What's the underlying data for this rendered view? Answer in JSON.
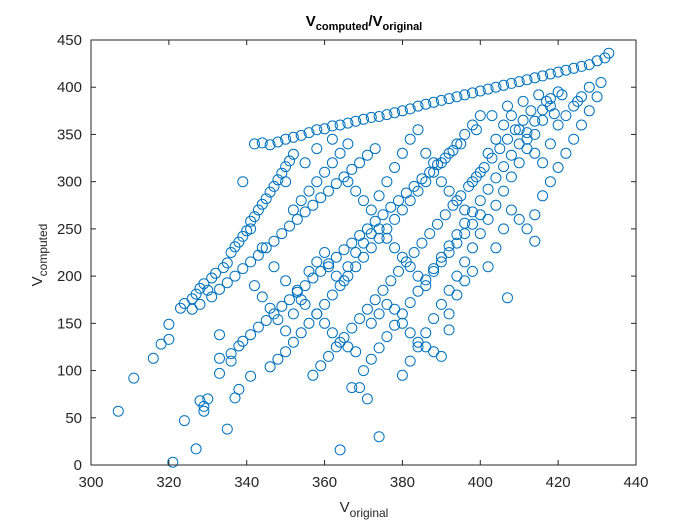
{
  "chart_data": {
    "type": "scatter",
    "title": {
      "main": "V",
      "sub1": "computed",
      "slash": "/V",
      "sub2": "original"
    },
    "xlabel": {
      "main": "V",
      "sub": "original"
    },
    "ylabel": {
      "main": "V",
      "sub": "computed"
    },
    "xlim": [
      300,
      440
    ],
    "ylim": [
      0,
      450
    ],
    "xticks": [
      "300",
      "320",
      "340",
      "360",
      "380",
      "400",
      "420",
      "440"
    ],
    "yticks": [
      "0",
      "50",
      "100",
      "150",
      "200",
      "250",
      "300",
      "350",
      "400",
      "450"
    ],
    "marker": "circle-open",
    "color": "#0072BD",
    "grid": false,
    "box": true,
    "points": [
      [
        307,
        57
      ],
      [
        311,
        92
      ],
      [
        316,
        113
      ],
      [
        318,
        128
      ],
      [
        320,
        133
      ],
      [
        320,
        149
      ],
      [
        321,
        3
      ],
      [
        324,
        47
      ],
      [
        327,
        17
      ],
      [
        328,
        68
      ],
      [
        329,
        57
      ],
      [
        329,
        62
      ],
      [
        330,
        70
      ],
      [
        333,
        97
      ],
      [
        333,
        113
      ],
      [
        333,
        138
      ],
      [
        335,
        38
      ],
      [
        336,
        110
      ],
      [
        337,
        71
      ],
      [
        338,
        80
      ],
      [
        339,
        300
      ],
      [
        341,
        94
      ],
      [
        341,
        250
      ],
      [
        342,
        340
      ],
      [
        344,
        341
      ],
      [
        346,
        339
      ],
      [
        348,
        342
      ],
      [
        350,
        345
      ],
      [
        352,
        347
      ],
      [
        354,
        349
      ],
      [
        356,
        352
      ],
      [
        358,
        355
      ],
      [
        360,
        356
      ],
      [
        362,
        359
      ],
      [
        364,
        16
      ],
      [
        364,
        360
      ],
      [
        366,
        362
      ],
      [
        367,
        82
      ],
      [
        368,
        364
      ],
      [
        369,
        82
      ],
      [
        370,
        366
      ],
      [
        371,
        70
      ],
      [
        372,
        368
      ],
      [
        374,
        30
      ],
      [
        374,
        369
      ],
      [
        376,
        371
      ],
      [
        378,
        373
      ],
      [
        380,
        375
      ],
      [
        382,
        377
      ],
      [
        384,
        380
      ],
      [
        386,
        382
      ],
      [
        388,
        384
      ],
      [
        390,
        386
      ],
      [
        392,
        143
      ],
      [
        392,
        388
      ],
      [
        394,
        390
      ],
      [
        396,
        392
      ],
      [
        398,
        394
      ],
      [
        400,
        396
      ],
      [
        402,
        398
      ],
      [
        404,
        400
      ],
      [
        406,
        402
      ],
      [
        407,
        177
      ],
      [
        408,
        404
      ],
      [
        410,
        406
      ],
      [
        412,
        408
      ],
      [
        414,
        237
      ],
      [
        414,
        410
      ],
      [
        416,
        412
      ],
      [
        417,
        385
      ],
      [
        418,
        414
      ],
      [
        420,
        416
      ],
      [
        422,
        418
      ],
      [
        424,
        420
      ],
      [
        426,
        422
      ],
      [
        428,
        424
      ],
      [
        430,
        428
      ],
      [
        432,
        431
      ],
      [
        433,
        436
      ],
      [
        323,
        166
      ],
      [
        324,
        171
      ],
      [
        326,
        176
      ],
      [
        327,
        181
      ],
      [
        328,
        187
      ],
      [
        329,
        192
      ],
      [
        330,
        185
      ],
      [
        331,
        198
      ],
      [
        332,
        203
      ],
      [
        334,
        209
      ],
      [
        335,
        214
      ],
      [
        336,
        225
      ],
      [
        337,
        231
      ],
      [
        338,
        236
      ],
      [
        339,
        242
      ],
      [
        340,
        248
      ],
      [
        341,
        258
      ],
      [
        342,
        263
      ],
      [
        343,
        270
      ],
      [
        344,
        276
      ],
      [
        345,
        282
      ],
      [
        346,
        289
      ],
      [
        347,
        295
      ],
      [
        348,
        302
      ],
      [
        349,
        309
      ],
      [
        350,
        316
      ],
      [
        351,
        322
      ],
      [
        352,
        329
      ],
      [
        326,
        165
      ],
      [
        328,
        170
      ],
      [
        331,
        178
      ],
      [
        333,
        186
      ],
      [
        335,
        193
      ],
      [
        337,
        200
      ],
      [
        339,
        208
      ],
      [
        341,
        215
      ],
      [
        343,
        222
      ],
      [
        345,
        230
      ],
      [
        347,
        237
      ],
      [
        349,
        245
      ],
      [
        351,
        253
      ],
      [
        353,
        260
      ],
      [
        355,
        268
      ],
      [
        357,
        275
      ],
      [
        359,
        283
      ],
      [
        361,
        290
      ],
      [
        363,
        298
      ],
      [
        365,
        305
      ],
      [
        367,
        313
      ],
      [
        369,
        320
      ],
      [
        371,
        328
      ],
      [
        373,
        335
      ],
      [
        336,
        118
      ],
      [
        338,
        126
      ],
      [
        339,
        131
      ],
      [
        341,
        138
      ],
      [
        343,
        146
      ],
      [
        345,
        153
      ],
      [
        347,
        160
      ],
      [
        349,
        168
      ],
      [
        351,
        175
      ],
      [
        353,
        183
      ],
      [
        355,
        190
      ],
      [
        357,
        198
      ],
      [
        359,
        205
      ],
      [
        361,
        213
      ],
      [
        363,
        220
      ],
      [
        365,
        228
      ],
      [
        367,
        235
      ],
      [
        369,
        243
      ],
      [
        371,
        250
      ],
      [
        373,
        258
      ],
      [
        375,
        265
      ],
      [
        377,
        273
      ],
      [
        379,
        280
      ],
      [
        381,
        288
      ],
      [
        383,
        295
      ],
      [
        385,
        303
      ],
      [
        387,
        310
      ],
      [
        389,
        318
      ],
      [
        391,
        325
      ],
      [
        393,
        333
      ],
      [
        395,
        340
      ],
      [
        346,
        104
      ],
      [
        348,
        112
      ],
      [
        350,
        120
      ],
      [
        352,
        130
      ],
      [
        354,
        140
      ],
      [
        356,
        150
      ],
      [
        358,
        160
      ],
      [
        360,
        170
      ],
      [
        362,
        180
      ],
      [
        364,
        190
      ],
      [
        366,
        200
      ],
      [
        368,
        210
      ],
      [
        370,
        220
      ],
      [
        372,
        230
      ],
      [
        374,
        240
      ],
      [
        376,
        250
      ],
      [
        378,
        260
      ],
      [
        380,
        270
      ],
      [
        382,
        280
      ],
      [
        384,
        290
      ],
      [
        386,
        300
      ],
      [
        388,
        310
      ],
      [
        390,
        320
      ],
      [
        392,
        330
      ],
      [
        394,
        340
      ],
      [
        396,
        350
      ],
      [
        398,
        360
      ],
      [
        400,
        370
      ],
      [
        357,
        95
      ],
      [
        359,
        105
      ],
      [
        361,
        115
      ],
      [
        363,
        125
      ],
      [
        365,
        135
      ],
      [
        367,
        145
      ],
      [
        369,
        155
      ],
      [
        371,
        165
      ],
      [
        373,
        175
      ],
      [
        375,
        185
      ],
      [
        377,
        195
      ],
      [
        379,
        205
      ],
      [
        381,
        215
      ],
      [
        383,
        225
      ],
      [
        385,
        235
      ],
      [
        387,
        245
      ],
      [
        389,
        255
      ],
      [
        391,
        265
      ],
      [
        393,
        275
      ],
      [
        395,
        285
      ],
      [
        397,
        295
      ],
      [
        399,
        305
      ],
      [
        401,
        315
      ],
      [
        403,
        325
      ],
      [
        405,
        335
      ],
      [
        407,
        345
      ],
      [
        409,
        355
      ],
      [
        411,
        365
      ],
      [
        413,
        375
      ],
      [
        370,
        100
      ],
      [
        372,
        112
      ],
      [
        374,
        124
      ],
      [
        376,
        136
      ],
      [
        378,
        148
      ],
      [
        380,
        160
      ],
      [
        382,
        172
      ],
      [
        384,
        184
      ],
      [
        386,
        196
      ],
      [
        388,
        208
      ],
      [
        390,
        220
      ],
      [
        392,
        232
      ],
      [
        394,
        244
      ],
      [
        396,
        256
      ],
      [
        398,
        268
      ],
      [
        400,
        280
      ],
      [
        402,
        292
      ],
      [
        404,
        304
      ],
      [
        406,
        316
      ],
      [
        408,
        328
      ],
      [
        410,
        340
      ],
      [
        412,
        352
      ],
      [
        414,
        364
      ],
      [
        416,
        376
      ],
      [
        418,
        388
      ],
      [
        380,
        95
      ],
      [
        382,
        110
      ],
      [
        384,
        125
      ],
      [
        386,
        140
      ],
      [
        388,
        155
      ],
      [
        390,
        170
      ],
      [
        392,
        185
      ],
      [
        394,
        200
      ],
      [
        396,
        215
      ],
      [
        398,
        230
      ],
      [
        400,
        245
      ],
      [
        402,
        260
      ],
      [
        404,
        275
      ],
      [
        406,
        290
      ],
      [
        408,
        305
      ],
      [
        410,
        320
      ],
      [
        412,
        335
      ],
      [
        414,
        350
      ],
      [
        416,
        365
      ],
      [
        418,
        380
      ],
      [
        420,
        395
      ],
      [
        342,
        190
      ],
      [
        344,
        178
      ],
      [
        346,
        166
      ],
      [
        348,
        154
      ],
      [
        350,
        142
      ],
      [
        352,
        160
      ],
      [
        354,
        175
      ],
      [
        356,
        205
      ],
      [
        358,
        215
      ],
      [
        360,
        225
      ],
      [
        361,
        210
      ],
      [
        363,
        200
      ],
      [
        365,
        195
      ],
      [
        366,
        210
      ],
      [
        368,
        225
      ],
      [
        370,
        235
      ],
      [
        372,
        245
      ],
      [
        374,
        250
      ],
      [
        376,
        240
      ],
      [
        378,
        230
      ],
      [
        380,
        220
      ],
      [
        382,
        210
      ],
      [
        384,
        200
      ],
      [
        386,
        190
      ],
      [
        388,
        205
      ],
      [
        390,
        215
      ],
      [
        392,
        225
      ],
      [
        394,
        235
      ],
      [
        396,
        245
      ],
      [
        398,
        255
      ],
      [
        400,
        265
      ],
      [
        352,
        270
      ],
      [
        354,
        280
      ],
      [
        356,
        290
      ],
      [
        358,
        300
      ],
      [
        360,
        310
      ],
      [
        362,
        320
      ],
      [
        364,
        330
      ],
      [
        366,
        340
      ],
      [
        350,
        300
      ],
      [
        355,
        320
      ],
      [
        358,
        335
      ],
      [
        362,
        345
      ],
      [
        366,
        300
      ],
      [
        368,
        290
      ],
      [
        370,
        280
      ],
      [
        372,
        270
      ],
      [
        374,
        285
      ],
      [
        376,
        300
      ],
      [
        378,
        315
      ],
      [
        380,
        330
      ],
      [
        382,
        345
      ],
      [
        384,
        355
      ],
      [
        386,
        330
      ],
      [
        388,
        320
      ],
      [
        390,
        300
      ],
      [
        392,
        290
      ],
      [
        394,
        280
      ],
      [
        396,
        270
      ],
      [
        398,
        300
      ],
      [
        400,
        310
      ],
      [
        402,
        330
      ],
      [
        404,
        345
      ],
      [
        406,
        360
      ],
      [
        408,
        370
      ],
      [
        410,
        355
      ],
      [
        412,
        345
      ],
      [
        414,
        330
      ],
      [
        416,
        320
      ],
      [
        418,
        340
      ],
      [
        420,
        360
      ],
      [
        422,
        370
      ],
      [
        424,
        380
      ],
      [
        426,
        390
      ],
      [
        428,
        400
      ],
      [
        425,
        385
      ],
      [
        421,
        392
      ],
      [
        419,
        372
      ],
      [
        415,
        392
      ],
      [
        411,
        385
      ],
      [
        407,
        380
      ],
      [
        403,
        370
      ],
      [
        399,
        355
      ],
      [
        344,
        230
      ],
      [
        347,
        210
      ],
      [
        350,
        195
      ],
      [
        353,
        185
      ],
      [
        355,
        170
      ],
      [
        358,
        160
      ],
      [
        360,
        150
      ],
      [
        362,
        140
      ],
      [
        364,
        130
      ],
      [
        366,
        125
      ],
      [
        368,
        120
      ],
      [
        372,
        150
      ],
      [
        374,
        160
      ],
      [
        376,
        170
      ],
      [
        378,
        165
      ],
      [
        380,
        150
      ],
      [
        382,
        140
      ],
      [
        384,
        130
      ],
      [
        386,
        125
      ],
      [
        388,
        120
      ],
      [
        390,
        115
      ],
      [
        392,
        160
      ],
      [
        394,
        180
      ],
      [
        396,
        195
      ],
      [
        398,
        205
      ],
      [
        402,
        210
      ],
      [
        404,
        230
      ],
      [
        406,
        250
      ],
      [
        408,
        270
      ],
      [
        410,
        260
      ],
      [
        412,
        250
      ],
      [
        414,
        265
      ],
      [
        416,
        285
      ],
      [
        418,
        300
      ],
      [
        420,
        315
      ],
      [
        422,
        330
      ],
      [
        424,
        345
      ],
      [
        426,
        360
      ],
      [
        428,
        375
      ],
      [
        430,
        390
      ],
      [
        431,
        405
      ]
    ]
  }
}
